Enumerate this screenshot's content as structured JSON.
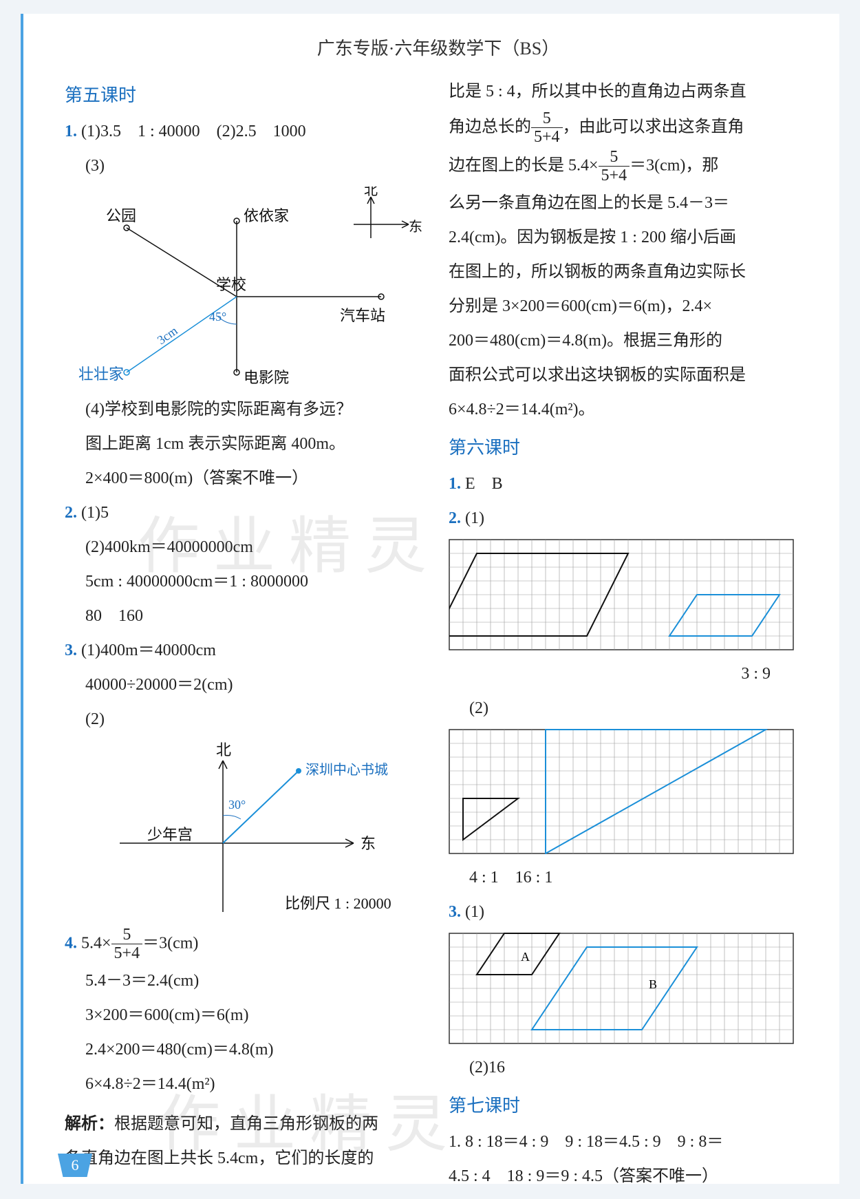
{
  "header": "广东专版·六年级数学下（BS）",
  "watermark": "作业精灵",
  "page_number": "6",
  "left": {
    "title5": "第五课时",
    "q1_a": "1.",
    "q1_line1": "(1)3.5　1 : 40000　(2)2.5　1000",
    "q1_3": "(3)",
    "compass_n": "北",
    "compass_e": "东",
    "dia1": {
      "park": "公园",
      "yiyi": "依依家",
      "school": "学校",
      "bus": "汽车站",
      "cinema": "电影院",
      "zhuang": "壮壮家",
      "len": "3cm",
      "angle": "45°",
      "line_color": "#1a8fd8",
      "dot_color": "#1a8fd8"
    },
    "q1_4a": "(4)学校到电影院的实际距离有多远？",
    "q1_4b": "图上距离 1cm 表示实际距离 400m。",
    "q1_4c": "2×400＝800(m)（答案不唯一）",
    "q2": "2.",
    "q2_1": "(1)5",
    "q2_2a": "(2)400km＝40000000cm",
    "q2_2b": "5cm : 40000000cm＝1 : 8000000",
    "q2_2c": "80　160",
    "q3": "3.",
    "q3_1a": "(1)400m＝40000cm",
    "q3_1b": "40000÷20000＝2(cm)",
    "q3_2": "(2)",
    "dia2": {
      "north": "北",
      "east": "东",
      "palace": "少年宫",
      "bookstore": "深圳中心书城",
      "angle": "30°",
      "scale": "比例尺 1 : 20000",
      "line_color": "#1a8fd8"
    },
    "q4": "4.",
    "q4_a_pre": "5.4×",
    "q4_a_ft": "5",
    "q4_a_fb": "5+4",
    "q4_a_post": "＝3(cm)",
    "q4_b": "5.4－3＝2.4(cm)",
    "q4_c": "3×200＝600(cm)＝6(m)",
    "q4_d": "2.4×200＝480(cm)＝4.8(m)",
    "q4_e": "6×4.8÷2＝14.4(m²)",
    "analysis_label": "解析：",
    "analysis_a": "根据题意可知，直角三角形钢板的两",
    "analysis_b": "条直角边在图上共长 5.4cm，它们的长度的"
  },
  "right": {
    "p1_a": "比是 5 : 4，所以其中长的直角边占两条直",
    "p1_b_pre": "角边总长的",
    "p1_b_ft": "5",
    "p1_b_fb": "5+4",
    "p1_b_post": "，由此可以求出这条直角",
    "p1_c_pre": "边在图上的长是 5.4×",
    "p1_c_ft": "5",
    "p1_c_fb": "5+4",
    "p1_c_post": "＝3(cm)，那",
    "p1_d": "么另一条直角边在图上的长是 5.4－3＝",
    "p1_e": "2.4(cm)。因为钢板是按 1 : 200 缩小后画",
    "p1_f": "在图上的，所以钢板的两条直角边实际长",
    "p1_g": "分别是 3×200＝600(cm)＝6(m)，2.4×",
    "p1_h": "200＝480(cm)＝4.8(m)。根据三角形的",
    "p1_i": "面积公式可以求出这块钢板的实际面积是",
    "p1_j": "6×4.8÷2＝14.4(m²)。",
    "title6": "第六课时",
    "q1": "1.",
    "q1_ans": "E　B",
    "q2": "2.",
    "q2_1": "(1)",
    "grid1": {
      "cols": 25,
      "rows": 8,
      "cell": 20,
      "border_color": "#555",
      "grid_color": "#888",
      "shapes": [
        {
          "type": "parallelogram",
          "pts": [
            [
              2,
              1
            ],
            [
              13,
              1
            ],
            [
              10,
              7
            ],
            [
              -1,
              7
            ]
          ],
          "stroke": "#111",
          "clip": true
        },
        {
          "type": "parallelogram",
          "pts": [
            [
              18,
              4
            ],
            [
              24,
              4
            ],
            [
              22,
              7
            ],
            [
              16,
              7
            ]
          ],
          "stroke": "#1a8fd8"
        }
      ]
    },
    "q2_1r": "3 : 9",
    "q2_2": "(2)",
    "grid2": {
      "cols": 25,
      "rows": 9,
      "cell": 20,
      "shapes": [
        {
          "type": "right-tri",
          "pts": [
            [
              1,
              5
            ],
            [
              5,
              5
            ],
            [
              1,
              8
            ]
          ],
          "stroke": "#111"
        },
        {
          "type": "right-tri",
          "pts": [
            [
              7,
              0
            ],
            [
              23,
              0
            ],
            [
              7,
              9
            ]
          ],
          "stroke": "#1a8fd8"
        }
      ]
    },
    "q2_2r": "4 : 1　16 : 1",
    "q3": "3.",
    "q3_1": "(1)",
    "grid3": {
      "cols": 25,
      "rows": 8,
      "cell": 20,
      "labelA": "A",
      "labelB": "B",
      "shapes": [
        {
          "type": "parallelogram",
          "pts": [
            [
              4,
              0
            ],
            [
              8,
              0
            ],
            [
              6,
              3
            ],
            [
              2,
              3
            ]
          ],
          "stroke": "#111"
        },
        {
          "type": "parallelogram",
          "pts": [
            [
              10,
              1
            ],
            [
              18,
              1
            ],
            [
              14,
              7
            ],
            [
              6,
              7
            ]
          ],
          "stroke": "#1a8fd8"
        }
      ]
    },
    "q3_2": "(2)16",
    "title7": "第七课时",
    "l7a": "1. 8 : 18＝4 : 9　9 : 18＝4.5 : 9　9 : 8＝",
    "l7b": "4.5 : 4　18 : 9＝9 : 4.5（答案不唯一）"
  }
}
